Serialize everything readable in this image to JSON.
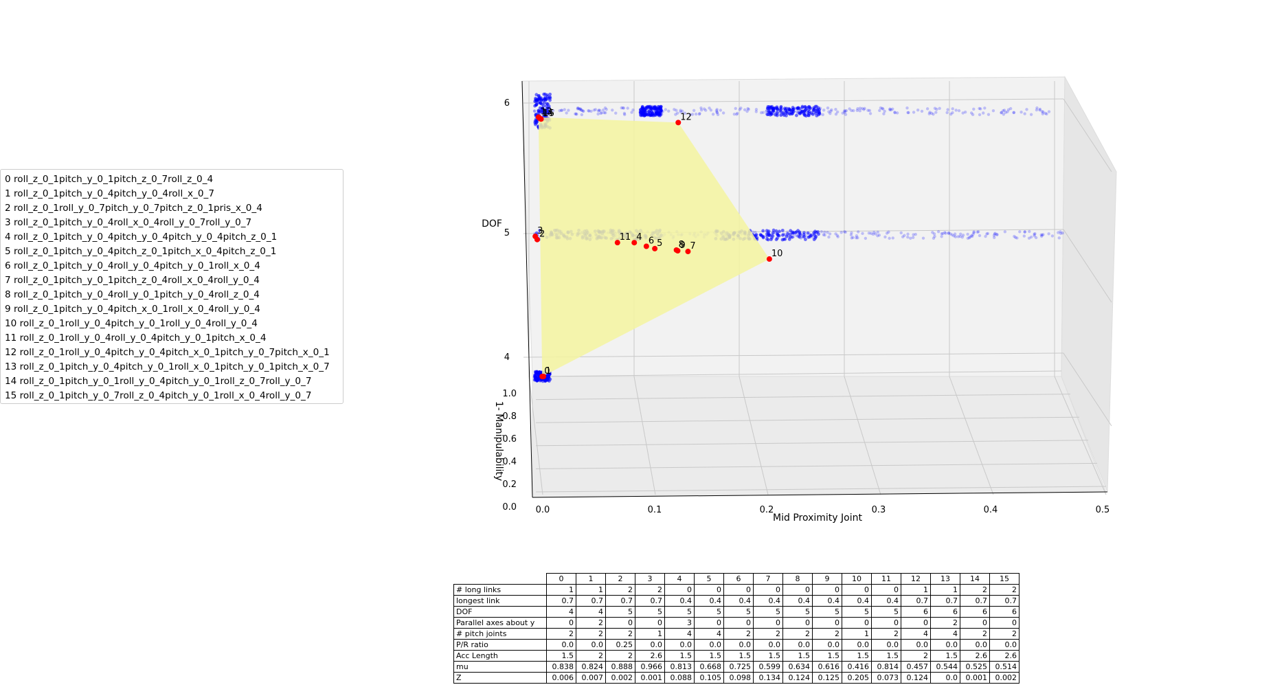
{
  "chart_data": {
    "type": "scatter",
    "dimensions": "3d",
    "xlabel": "Mid Proximity Joint",
    "ylabel": "1- Manipulability",
    "zlabel": "DOF",
    "x_ticks": [
      "0.0",
      "0.1",
      "0.2",
      "0.3",
      "0.4",
      "0.5"
    ],
    "y_ticks": [
      "0.0",
      "0.2",
      "0.4",
      "0.6",
      "0.8",
      "1.0"
    ],
    "z_ticks": [
      "4",
      "5",
      "6"
    ],
    "xlim": [
      0.0,
      0.5
    ],
    "ylim": [
      0.0,
      1.0
    ],
    "zlim": [
      4,
      6
    ],
    "grid": true,
    "background_points_color": "#0000ff",
    "pareto_point_color": "#ff0000",
    "front_fill_color": "#f5f5a0",
    "background_clusters": [
      {
        "dof": 6,
        "x_range": [
          0.0,
          0.5
        ],
        "dense_ranges": [
          [
            0.0,
            0.015
          ],
          [
            0.1,
            0.12
          ],
          [
            0.22,
            0.27
          ]
        ]
      },
      {
        "dof": 5,
        "x_range": [
          0.0,
          0.5
        ],
        "dense_ranges": [
          [
            0.0,
            0.12
          ],
          [
            0.17,
            0.27
          ]
        ]
      },
      {
        "dof": 4,
        "x_range": [
          0.0,
          0.015
        ],
        "dense_ranges": [
          [
            0.0,
            0.015
          ]
        ]
      }
    ],
    "pareto_points": [
      {
        "label": "0",
        "x": 0.006,
        "dof": 4,
        "one_minus_manip": 0.162
      },
      {
        "label": "1",
        "x": 0.007,
        "dof": 4,
        "one_minus_manip": 0.176
      },
      {
        "label": "2",
        "x": 0.002,
        "dof": 5,
        "one_minus_manip": 0.112
      },
      {
        "label": "3",
        "x": 0.001,
        "dof": 5,
        "one_minus_manip": 0.034
      },
      {
        "label": "4",
        "x": 0.088,
        "dof": 5,
        "one_minus_manip": 0.187
      },
      {
        "label": "5",
        "x": 0.105,
        "dof": 5,
        "one_minus_manip": 0.332
      },
      {
        "label": "6",
        "x": 0.098,
        "dof": 5,
        "one_minus_manip": 0.275
      },
      {
        "label": "7",
        "x": 0.134,
        "dof": 5,
        "one_minus_manip": 0.401
      },
      {
        "label": "8",
        "x": 0.124,
        "dof": 5,
        "one_minus_manip": 0.366
      },
      {
        "label": "9",
        "x": 0.125,
        "dof": 5,
        "one_minus_manip": 0.384
      },
      {
        "label": "10",
        "x": 0.205,
        "dof": 5,
        "one_minus_manip": 0.584
      },
      {
        "label": "11",
        "x": 0.073,
        "dof": 5,
        "one_minus_manip": 0.186
      },
      {
        "label": "12",
        "x": 0.124,
        "dof": 6,
        "one_minus_manip": 0.543
      },
      {
        "label": "13",
        "x": 0.0,
        "dof": 6,
        "one_minus_manip": 0.456
      },
      {
        "label": "14",
        "x": 0.001,
        "dof": 6,
        "one_minus_manip": 0.475
      },
      {
        "label": "15",
        "x": 0.002,
        "dof": 6,
        "one_minus_manip": 0.486
      }
    ],
    "legend": {
      "placement": "left",
      "entries": [
        "0 roll_z_0_1pitch_y_0_1pitch_z_0_7roll_z_0_4",
        "1 roll_z_0_1pitch_y_0_4pitch_y_0_4roll_x_0_7",
        "2 roll_z_0_1roll_y_0_7pitch_y_0_7pitch_z_0_1pris_x_0_4",
        "3 roll_z_0_1pitch_y_0_4roll_x_0_4roll_y_0_7roll_y_0_7",
        "4 roll_z_0_1pitch_y_0_4pitch_y_0_4pitch_y_0_4pitch_z_0_1",
        "5 roll_z_0_1pitch_y_0_4pitch_z_0_1pitch_x_0_4pitch_z_0_1",
        "6 roll_z_0_1pitch_y_0_4roll_y_0_4pitch_y_0_1roll_x_0_4",
        "7 roll_z_0_1pitch_y_0_1pitch_z_0_4roll_x_0_4roll_y_0_4",
        "8 roll_z_0_1pitch_y_0_4roll_y_0_1pitch_y_0_4roll_z_0_4",
        "9 roll_z_0_1pitch_y_0_4pitch_x_0_1roll_x_0_4roll_y_0_4",
        "10 roll_z_0_1roll_y_0_4pitch_y_0_1roll_y_0_4roll_y_0_4",
        "11 roll_z_0_1roll_y_0_4roll_y_0_4pitch_y_0_1pitch_x_0_4",
        "12 roll_z_0_1roll_y_0_4pitch_y_0_4pitch_x_0_1pitch_y_0_7pitch_x_0_1",
        "13 roll_z_0_1pitch_y_0_4pitch_y_0_1roll_x_0_1pitch_y_0_1pitch_x_0_7",
        "14 roll_z_0_1pitch_y_0_1roll_y_0_4pitch_y_0_1roll_z_0_7roll_y_0_7",
        "15 roll_z_0_1pitch_y_0_7roll_z_0_4pitch_y_0_1roll_x_0_4roll_y_0_7"
      ]
    }
  },
  "table": {
    "columns": [
      "0",
      "1",
      "2",
      "3",
      "4",
      "5",
      "6",
      "7",
      "8",
      "9",
      "10",
      "11",
      "12",
      "13",
      "14",
      "15"
    ],
    "rows": [
      {
        "label": "# long links",
        "values": [
          "1",
          "1",
          "2",
          "2",
          "0",
          "0",
          "0",
          "0",
          "0",
          "0",
          "0",
          "0",
          "1",
          "1",
          "2",
          "2"
        ]
      },
      {
        "label": "longest link",
        "values": [
          "0.7",
          "0.7",
          "0.7",
          "0.7",
          "0.4",
          "0.4",
          "0.4",
          "0.4",
          "0.4",
          "0.4",
          "0.4",
          "0.4",
          "0.7",
          "0.7",
          "0.7",
          "0.7"
        ]
      },
      {
        "label": "DOF",
        "values": [
          "4",
          "4",
          "5",
          "5",
          "5",
          "5",
          "5",
          "5",
          "5",
          "5",
          "5",
          "5",
          "6",
          "6",
          "6",
          "6"
        ]
      },
      {
        "label": "Parallel axes about y",
        "values": [
          "0",
          "2",
          "0",
          "0",
          "3",
          "0",
          "0",
          "0",
          "0",
          "0",
          "0",
          "0",
          "0",
          "2",
          "0",
          "0"
        ]
      },
      {
        "label": "# pitch joints",
        "values": [
          "2",
          "2",
          "2",
          "1",
          "4",
          "4",
          "2",
          "2",
          "2",
          "2",
          "1",
          "2",
          "4",
          "4",
          "2",
          "2"
        ]
      },
      {
        "label": "P/R ratio",
        "values": [
          "0.0",
          "0.0",
          "0.25",
          "0.0",
          "0.0",
          "0.0",
          "0.0",
          "0.0",
          "0.0",
          "0.0",
          "0.0",
          "0.0",
          "0.0",
          "0.0",
          "0.0",
          "0.0"
        ]
      },
      {
        "label": "Acc Length",
        "values": [
          "1.5",
          "2",
          "2",
          "2.6",
          "1.5",
          "1.5",
          "1.5",
          "1.5",
          "1.5",
          "1.5",
          "1.5",
          "1.5",
          "2",
          "1.5",
          "2.6",
          "2.6"
        ]
      },
      {
        "label": "mu",
        "values": [
          "0.838",
          "0.824",
          "0.888",
          "0.966",
          "0.813",
          "0.668",
          "0.725",
          "0.599",
          "0.634",
          "0.616",
          "0.416",
          "0.814",
          "0.457",
          "0.544",
          "0.525",
          "0.514"
        ]
      },
      {
        "label": "Z",
        "values": [
          "0.006",
          "0.007",
          "0.002",
          "0.001",
          "0.088",
          "0.105",
          "0.098",
          "0.134",
          "0.124",
          "0.125",
          "0.205",
          "0.073",
          "0.124",
          "0.0",
          "0.001",
          "0.002"
        ]
      }
    ]
  }
}
